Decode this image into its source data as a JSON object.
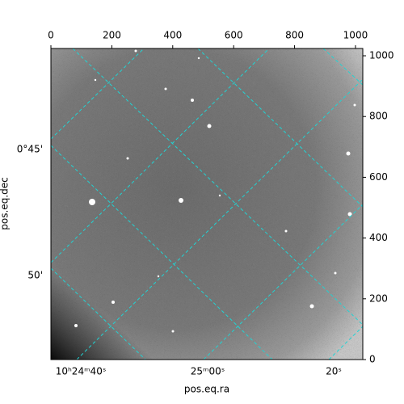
{
  "chart_data": {
    "type": "image",
    "xlabel": "pos.eq.ra",
    "ylabel": "pos.eq.dec",
    "xlim": [
      0,
      1024
    ],
    "ylim": [
      0,
      1024
    ],
    "xticks": [
      0,
      200,
      400,
      600,
      800,
      1000
    ],
    "yticks": [
      0,
      200,
      400,
      600,
      800,
      1000
    ],
    "ra_ticks": [
      "10ʰ24ᵐ40ˢ",
      "25ᵐ00ˢ",
      "20ˢ"
    ],
    "dec_ticks": [
      "0°45'",
      "50'"
    ]
  }
}
